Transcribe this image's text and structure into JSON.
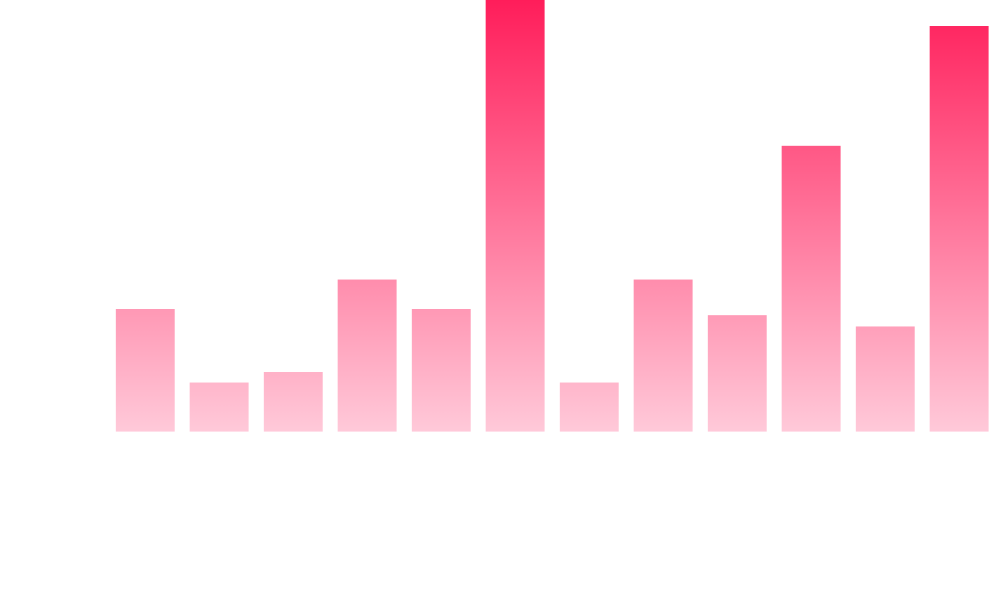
{
  "chart_data": {
    "type": "bar",
    "values": [
      175,
      70,
      85,
      217,
      175,
      616,
      70,
      217,
      166,
      408,
      150,
      579
    ],
    "ylim": [
      0,
      616
    ],
    "gradient": [
      "#ff1d5a",
      "#ffc9d9"
    ]
  }
}
